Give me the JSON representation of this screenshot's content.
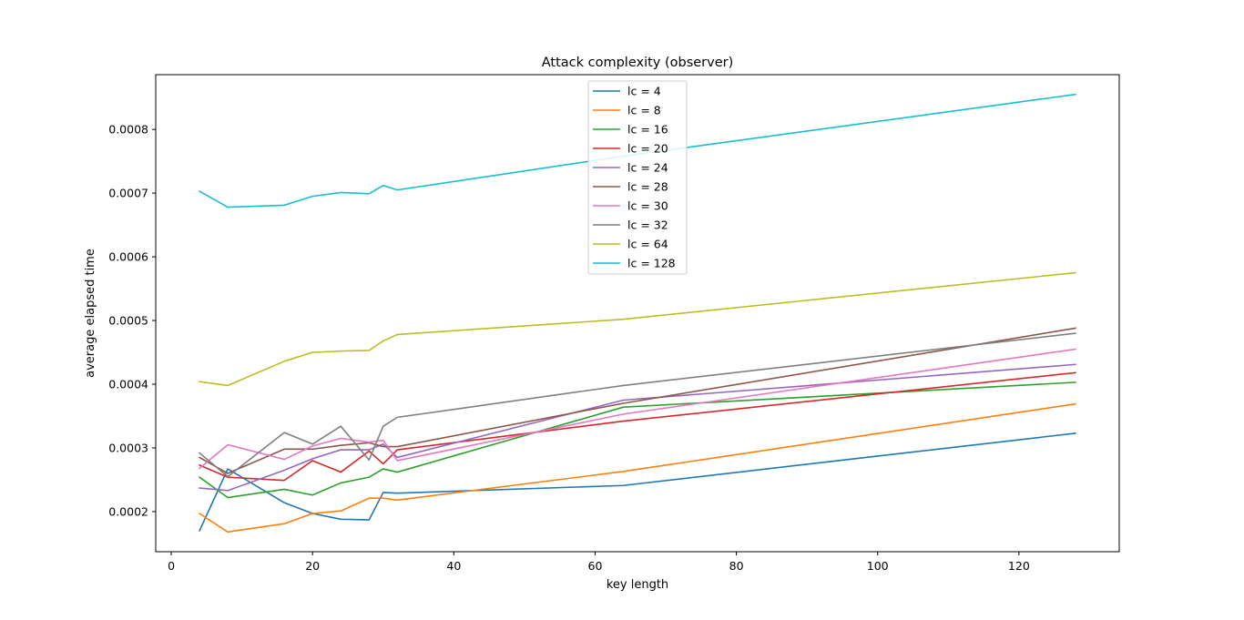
{
  "chart_data": {
    "type": "line",
    "title": "Attack complexity (observer)",
    "xlabel": "key length",
    "ylabel": "average elapsed time",
    "xlim": [
      -2.2,
      134.2
    ],
    "ylim": [
      0.000137,
      0.000886
    ],
    "xticks": [
      0,
      20,
      40,
      60,
      80,
      100,
      120
    ],
    "yticks": [
      0.0002,
      0.0003,
      0.0004,
      0.0005,
      0.0006,
      0.0007,
      0.0008
    ],
    "ytick_labels": [
      "0.0002",
      "0.0003",
      "0.0004",
      "0.0005",
      "0.0006",
      "0.0007",
      "0.0008"
    ],
    "grid": false,
    "legend_position": "upper center",
    "x": [
      4,
      8,
      16,
      20,
      24,
      28,
      30,
      32,
      64,
      128
    ],
    "series": [
      {
        "name": "lc = 4",
        "color": "#1f77b4",
        "values": [
          0.00017,
          0.000267,
          0.000214,
          0.000197,
          0.000188,
          0.000187,
          0.00023,
          0.000229,
          0.000241,
          0.000323
        ]
      },
      {
        "name": "lc = 8",
        "color": "#ff7f0e",
        "values": [
          0.000197,
          0.000168,
          0.000181,
          0.000197,
          0.000201,
          0.000221,
          0.000221,
          0.000218,
          0.000263,
          0.000369
        ]
      },
      {
        "name": "lc = 16",
        "color": "#2ca02c",
        "values": [
          0.000254,
          0.000222,
          0.000235,
          0.000226,
          0.000245,
          0.000254,
          0.000267,
          0.000262,
          0.000364,
          0.000403
        ]
      },
      {
        "name": "lc = 20",
        "color": "#d62728",
        "values": [
          0.000273,
          0.000254,
          0.000249,
          0.00028,
          0.000262,
          0.000295,
          0.000275,
          0.000297,
          0.000342,
          0.000418
        ]
      },
      {
        "name": "lc = 24",
        "color": "#9467bd",
        "values": [
          0.000237,
          0.000233,
          0.000265,
          0.000283,
          0.000297,
          0.000297,
          0.000306,
          0.000285,
          0.000375,
          0.000431
        ]
      },
      {
        "name": "lc = 28",
        "color": "#8c564b",
        "values": [
          0.000285,
          0.00026,
          0.000298,
          0.000298,
          0.000304,
          0.000308,
          0.000302,
          0.000302,
          0.00037,
          0.000488
        ]
      },
      {
        "name": "lc = 30",
        "color": "#e377c2",
        "values": [
          0.000268,
          0.000305,
          0.000282,
          0.000303,
          0.000315,
          0.000309,
          0.000312,
          0.00028,
          0.000353,
          0.000455
        ]
      },
      {
        "name": "lc = 32",
        "color": "#7f7f7f",
        "values": [
          0.000292,
          0.000255,
          0.000324,
          0.000306,
          0.000334,
          0.000281,
          0.000334,
          0.000348,
          0.000398,
          0.00048
        ]
      },
      {
        "name": "lc = 64",
        "color": "#bcbd22",
        "values": [
          0.000404,
          0.000398,
          0.000436,
          0.00045,
          0.000452,
          0.000453,
          0.000468,
          0.000478,
          0.000502,
          0.000575
        ]
      },
      {
        "name": "lc = 128",
        "color": "#17becf",
        "values": [
          0.000703,
          0.000678,
          0.000681,
          0.000695,
          0.000701,
          0.000699,
          0.000712,
          0.000705,
          0.000758,
          0.000855
        ]
      }
    ]
  }
}
